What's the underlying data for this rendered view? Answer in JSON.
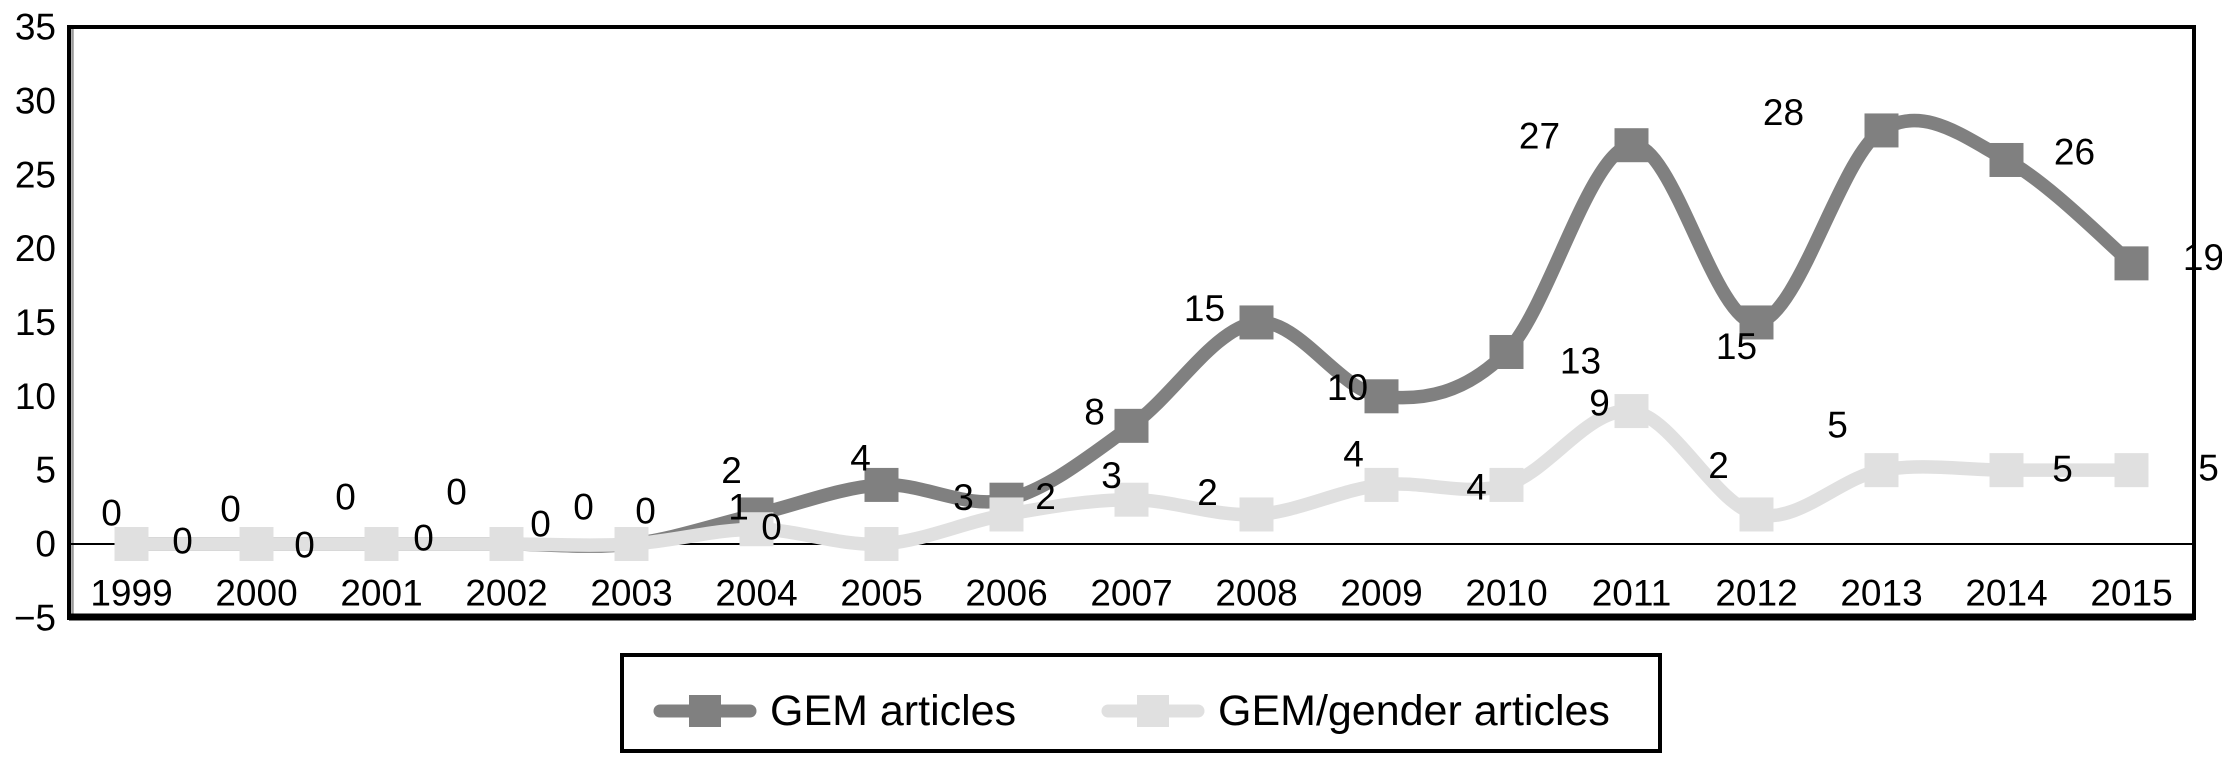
{
  "chart_data": {
    "type": "line",
    "smoothed": true,
    "data_labels": true,
    "grid": "none",
    "legend_position": "bottom-boxed",
    "categories": [
      "1999",
      "2000",
      "2001",
      "2002",
      "2003",
      "2004",
      "2005",
      "2006",
      "2007",
      "2008",
      "2009",
      "2010",
      "2011",
      "2012",
      "2013",
      "2014",
      "2015"
    ],
    "series": [
      {
        "name": "GEM articles",
        "color": "#808080",
        "values": [
          0,
          0,
          0,
          0,
          0,
          2,
          4,
          3,
          8,
          15,
          10,
          13,
          27,
          15,
          28,
          26,
          19
        ],
        "label_offsets": [
          [
            -20,
            -31
          ],
          [
            -26,
            -35
          ],
          [
            -36,
            -47
          ],
          [
            -50,
            -52
          ],
          [
            -48,
            -37
          ],
          [
            -25,
            -44
          ],
          [
            -21,
            -27
          ],
          [
            -43,
            -2
          ],
          [
            -37,
            -14
          ],
          [
            -52,
            -14
          ],
          [
            -34,
            -9
          ],
          [
            74,
            9
          ],
          [
            -92,
            -9
          ],
          [
            -20,
            24
          ],
          [
            -98,
            -18
          ],
          [
            68,
            -8
          ],
          [
            72,
            -6
          ]
        ]
      },
      {
        "name": "GEM/gender articles",
        "color": "#e0e0e0",
        "values": [
          0,
          0,
          0,
          0,
          0,
          1,
          0,
          2,
          3,
          2,
          4,
          4,
          9,
          2,
          5,
          5,
          5
        ],
        "label_offsets": [
          [
            51,
            -3
          ],
          [
            48,
            1
          ],
          [
            42,
            -6
          ],
          [
            34,
            -20
          ],
          [
            14,
            -33
          ],
          [
            -18,
            -22
          ],
          [
            -110,
            -17
          ],
          [
            39,
            -18
          ],
          [
            -20,
            -24
          ],
          [
            -49,
            -22
          ],
          [
            -28,
            -31
          ],
          [
            -30,
            2
          ],
          [
            -32,
            -8
          ],
          [
            -38,
            -49
          ],
          [
            -44,
            -45
          ],
          [
            56,
            -1
          ],
          [
            77,
            -2
          ]
        ]
      }
    ],
    "xlabel": "",
    "ylabel": "",
    "title": "",
    "ylim": [
      -5,
      35
    ],
    "y_ticks": [
      35,
      30,
      25,
      20,
      15,
      10,
      5,
      0,
      -5
    ],
    "y_tick_labels": [
      "35",
      "30",
      "25",
      "20",
      "15",
      "10",
      "5",
      "0",
      "−5"
    ]
  },
  "legend": {
    "item1": "GEM articles",
    "item2": "GEM/gender articles"
  }
}
